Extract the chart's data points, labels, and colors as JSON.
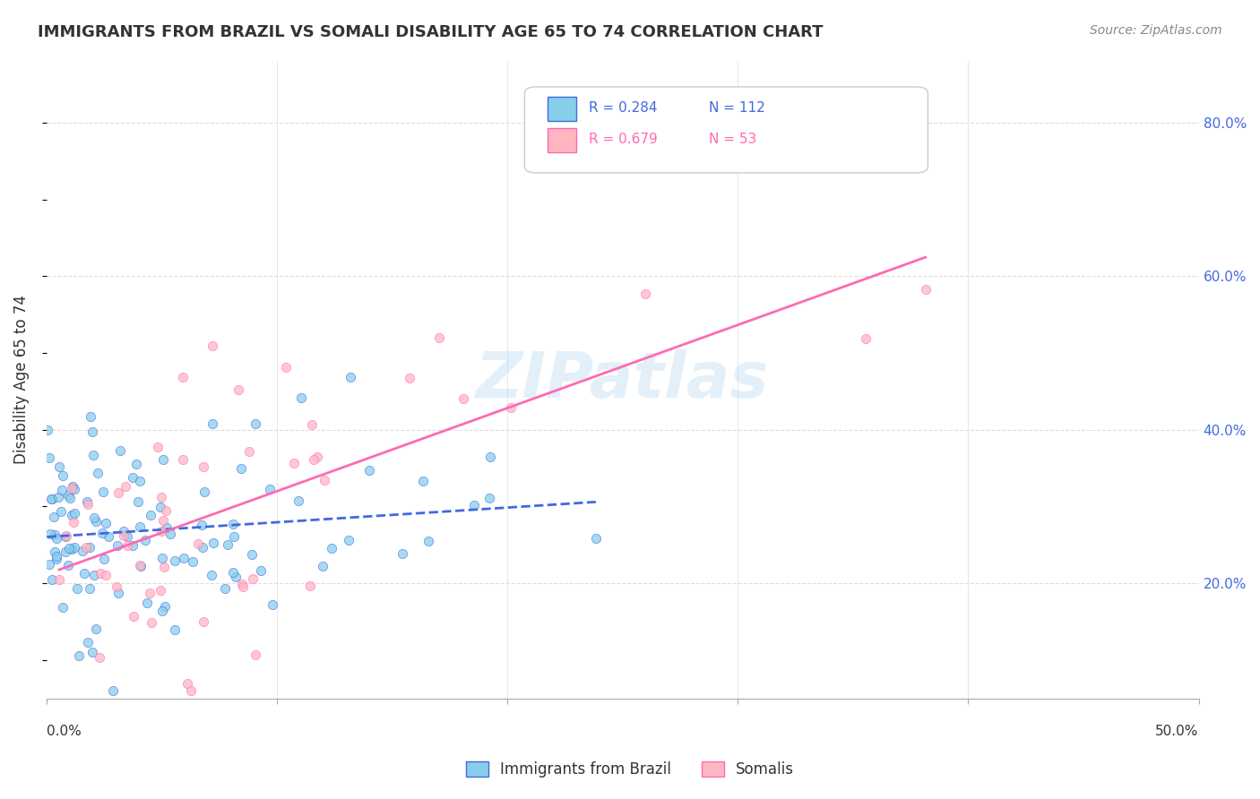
{
  "title": "IMMIGRANTS FROM BRAZIL VS SOMALI DISABILITY AGE 65 TO 74 CORRELATION CHART",
  "source": "Source: ZipAtlas.com",
  "ylabel": "Disability Age 65 to 74",
  "yaxis_ticks": [
    0.2,
    0.4,
    0.6,
    0.8
  ],
  "yaxis_labels": [
    "20.0%",
    "40.0%",
    "60.0%",
    "80.0%"
  ],
  "xlim": [
    0.0,
    0.5
  ],
  "ylim": [
    0.05,
    0.88
  ],
  "legend_r1": "R = 0.284",
  "legend_n1": "N = 112",
  "legend_r2": "R = 0.679",
  "legend_n2": "N = 53",
  "legend_label1": "Immigrants from Brazil",
  "legend_label2": "Somalis",
  "brazil_color": "#87CEEB",
  "somali_color": "#FFB6C1",
  "brazil_line_color": "#4169E1",
  "somali_line_color": "#FF69B4",
  "brazil_R": 0.284,
  "somali_R": 0.679,
  "watermark": "ZIPatlas",
  "background_color": "#ffffff",
  "grid_color": "#dddddd"
}
